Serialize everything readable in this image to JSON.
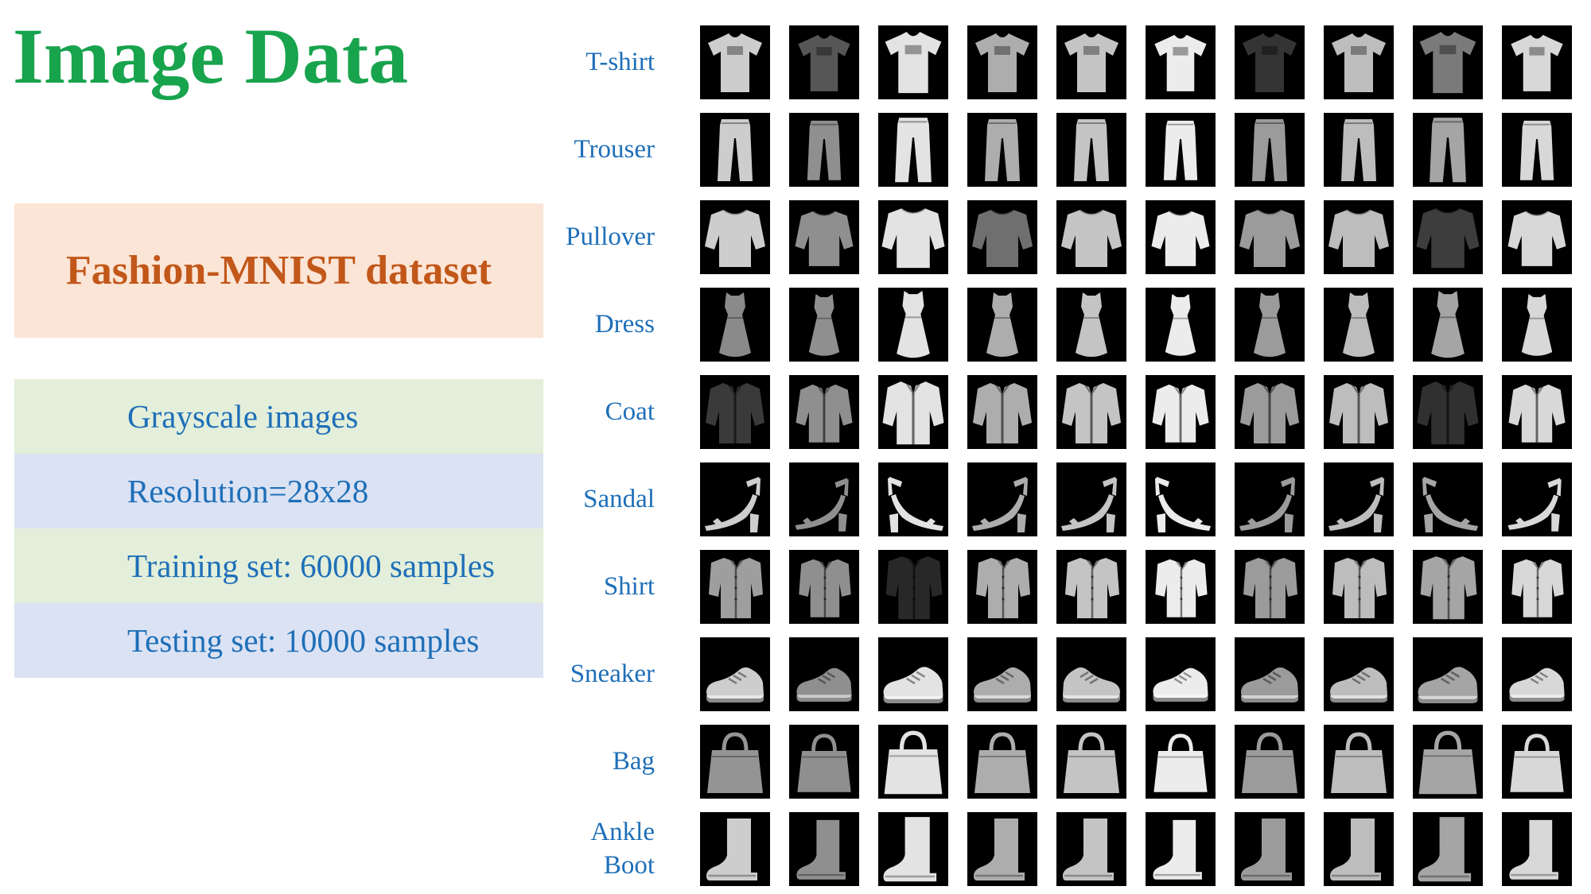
{
  "title": "Image Data",
  "dataset_box": {
    "label": "Fashion-MNIST dataset"
  },
  "info_boxes": [
    {
      "text": "Grayscale images",
      "tone": "green"
    },
    {
      "text": "Resolution=28x28",
      "tone": "blue"
    },
    {
      "text": "Training set: 60000 samples",
      "tone": "green"
    },
    {
      "text": "Testing set: 10000 samples",
      "tone": "blue"
    }
  ],
  "colors": {
    "title_green": "#18A34D",
    "dataset_bg": "#FBE5D6",
    "dataset_text": "#C2571A",
    "green_bg": "#E3EFDA",
    "blue_bg": "#DBE2F3",
    "text_blue": "#1E6FB8",
    "tile_bg": "#000000"
  },
  "grid": {
    "columns": 10,
    "rows": [
      {
        "label": "T-shirt",
        "class_name": "tshirt"
      },
      {
        "label": "Trouser",
        "class_name": "trouser"
      },
      {
        "label": "Pullover",
        "class_name": "pullover"
      },
      {
        "label": "Dress",
        "class_name": "dress"
      },
      {
        "label": "Coat",
        "class_name": "coat"
      },
      {
        "label": "Sandal",
        "class_name": "sandal"
      },
      {
        "label": "Shirt",
        "class_name": "shirt"
      },
      {
        "label": "Sneaker",
        "class_name": "sneaker"
      },
      {
        "label": "Bag",
        "class_name": "bag"
      },
      {
        "label": "Ankle Boot",
        "class_name": "ankle-boot"
      }
    ]
  }
}
